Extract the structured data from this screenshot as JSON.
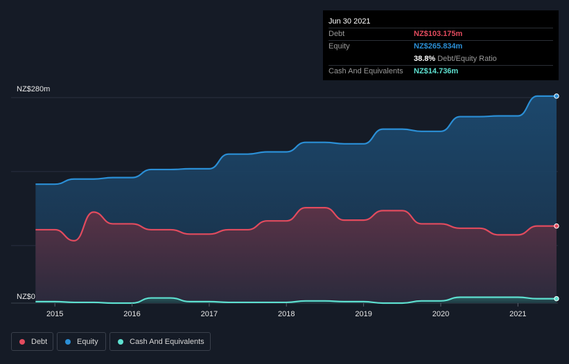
{
  "chart_data": {
    "type": "area",
    "currency": "NZ$",
    "y_tick_labels": {
      "top": "NZ$280m",
      "bottom": "NZ$0"
    },
    "ylim": [
      0,
      280
    ],
    "xlim": [
      2014.72,
      2021.5
    ],
    "x_tick_labels": [
      "2015",
      "2016",
      "2017",
      "2018",
      "2019",
      "2020",
      "2021"
    ],
    "x_ticks": [
      2015,
      2016,
      2017,
      2018,
      2019,
      2020,
      2021
    ],
    "grid": "horizontal",
    "legend_position": "bottom-left",
    "series": [
      {
        "name": "Equity",
        "color": "#2b8fd6",
        "points": [
          [
            2014.75,
            162
          ],
          [
            2015.0,
            162
          ],
          [
            2015.25,
            169
          ],
          [
            2015.5,
            169
          ],
          [
            2015.75,
            171
          ],
          [
            2016.0,
            171
          ],
          [
            2016.25,
            182
          ],
          [
            2016.5,
            182
          ],
          [
            2016.75,
            183
          ],
          [
            2017.0,
            183
          ],
          [
            2017.25,
            203
          ],
          [
            2017.5,
            203
          ],
          [
            2017.75,
            206
          ],
          [
            2018.0,
            206
          ],
          [
            2018.25,
            219
          ],
          [
            2018.5,
            219
          ],
          [
            2018.75,
            217
          ],
          [
            2019.0,
            217
          ],
          [
            2019.25,
            237
          ],
          [
            2019.5,
            237
          ],
          [
            2019.75,
            234
          ],
          [
            2020.0,
            234
          ],
          [
            2020.25,
            254
          ],
          [
            2020.5,
            254
          ],
          [
            2020.75,
            255
          ],
          [
            2021.0,
            255
          ],
          [
            2021.25,
            282
          ],
          [
            2021.5,
            282
          ]
        ]
      },
      {
        "name": "Debt",
        "color": "#e24b5e",
        "points": [
          [
            2014.75,
            100
          ],
          [
            2015.0,
            100
          ],
          [
            2015.25,
            85
          ],
          [
            2015.5,
            124
          ],
          [
            2015.75,
            108
          ],
          [
            2016.0,
            108
          ],
          [
            2016.25,
            100
          ],
          [
            2016.5,
            100
          ],
          [
            2016.75,
            94
          ],
          [
            2017.0,
            94
          ],
          [
            2017.25,
            100
          ],
          [
            2017.5,
            100
          ],
          [
            2017.75,
            112
          ],
          [
            2018.0,
            112
          ],
          [
            2018.25,
            130
          ],
          [
            2018.5,
            130
          ],
          [
            2018.75,
            113
          ],
          [
            2019.0,
            113
          ],
          [
            2019.25,
            126
          ],
          [
            2019.5,
            126
          ],
          [
            2019.75,
            108
          ],
          [
            2020.0,
            108
          ],
          [
            2020.25,
            102
          ],
          [
            2020.5,
            102
          ],
          [
            2020.75,
            93
          ],
          [
            2021.0,
            93
          ],
          [
            2021.25,
            105
          ],
          [
            2021.5,
            105
          ]
        ]
      },
      {
        "name": "Cash And Equivalents",
        "color": "#5ee0d0",
        "points": [
          [
            2014.75,
            2
          ],
          [
            2015.0,
            2
          ],
          [
            2015.25,
            1
          ],
          [
            2015.5,
            1
          ],
          [
            2015.75,
            0
          ],
          [
            2016.0,
            0
          ],
          [
            2016.25,
            7
          ],
          [
            2016.5,
            7
          ],
          [
            2016.75,
            2
          ],
          [
            2017.0,
            2
          ],
          [
            2017.25,
            1
          ],
          [
            2017.5,
            1
          ],
          [
            2017.75,
            1
          ],
          [
            2018.0,
            1
          ],
          [
            2018.25,
            3
          ],
          [
            2018.5,
            3
          ],
          [
            2018.75,
            2
          ],
          [
            2019.0,
            2
          ],
          [
            2019.25,
            0
          ],
          [
            2019.5,
            0
          ],
          [
            2019.75,
            3
          ],
          [
            2020.0,
            3
          ],
          [
            2020.25,
            8
          ],
          [
            2020.5,
            8
          ],
          [
            2020.75,
            8
          ],
          [
            2021.0,
            8
          ],
          [
            2021.25,
            6
          ],
          [
            2021.5,
            6
          ]
        ]
      }
    ]
  },
  "tooltip": {
    "date": "Jun 30 2021",
    "rows": [
      {
        "label": "Debt",
        "value": "NZ$103.175m",
        "color": "#e24b5e"
      },
      {
        "label": "Equity",
        "value": "NZ$265.834m",
        "color": "#2b8fd6"
      },
      {
        "label": "",
        "value": "38.8%",
        "suffix": "Debt/Equity Ratio",
        "color": "#ffffff"
      },
      {
        "label": "Cash And Equivalents",
        "value": "NZ$14.736m",
        "color": "#5ee0d0"
      }
    ]
  },
  "legend": [
    {
      "label": "Debt",
      "color": "#e24b5e"
    },
    {
      "label": "Equity",
      "color": "#2b8fd6"
    },
    {
      "label": "Cash And Equivalents",
      "color": "#5ee0d0"
    }
  ]
}
